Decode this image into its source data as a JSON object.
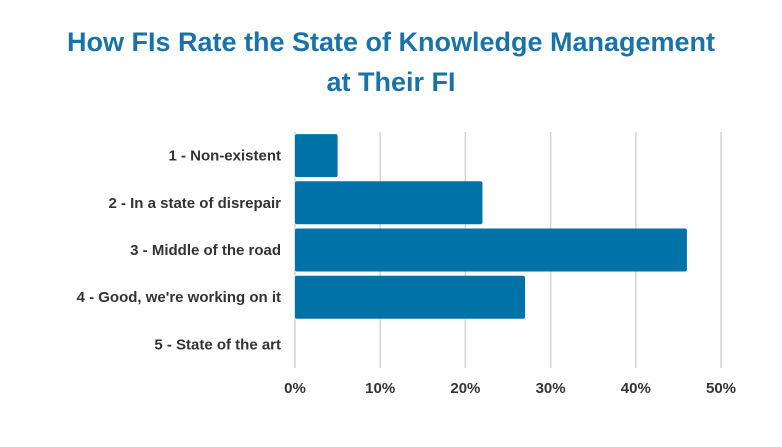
{
  "colors": {
    "title": "#1a73a8",
    "bar": "#0072a8",
    "grid": "#d6d6d6",
    "text": "#333333"
  },
  "chart_data": {
    "type": "bar",
    "orientation": "horizontal",
    "title_lines": [
      "How FIs Rate the State of Knowledge Management",
      "at Their FI"
    ],
    "categories": [
      "1 - Non-existent",
      "2 - In a state of disrepair",
      "3 - Middle of the road",
      "4 - Good, we're working on it",
      "5 - State of the art"
    ],
    "values": [
      5,
      22,
      46,
      27,
      0
    ],
    "xlim": [
      0,
      50
    ],
    "xticks": [
      0,
      10,
      20,
      30,
      40,
      50
    ],
    "tick_suffix": "%",
    "grid": true,
    "legend": "none"
  }
}
